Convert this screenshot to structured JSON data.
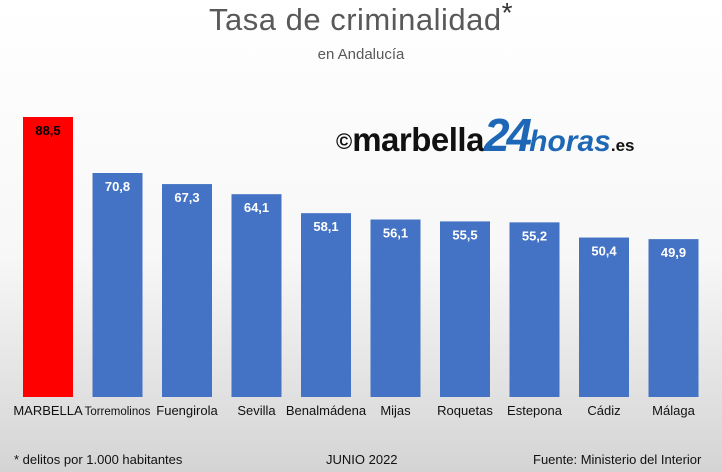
{
  "title": "Tasa de criminalidad",
  "title_mark": "*",
  "subtitle": "en Andalucía",
  "logo": {
    "copyright": "©",
    "brand": "marbella",
    "number": "24",
    "suffix": "horas",
    "tld": ".es"
  },
  "footer": {
    "note": "* delitos por 1.000 habitantes",
    "date": "JUNIO 2022",
    "source": "Fuente: Ministerio del Interior"
  },
  "colors": {
    "highlight": "#ff0000",
    "bar": "#4472c4",
    "label_light": "#ffffff",
    "label_dark": "#000000"
  },
  "chart_data": {
    "type": "bar",
    "title": "Tasa de criminalidad",
    "subtitle": "en Andalucía",
    "categories": [
      "MARBELLA",
      "Torremolinos",
      "Fuengirola",
      "Sevilla",
      "Benalmádena",
      "Mijas",
      "Roquetas",
      "Estepona",
      "Cádiz",
      "Málaga"
    ],
    "values": [
      88.5,
      70.8,
      67.3,
      64.1,
      58.1,
      56.1,
      55.5,
      55.2,
      50.4,
      49.9
    ],
    "value_labels": [
      "88,5",
      "70,8",
      "67,3",
      "64,1",
      "58,1",
      "56,1",
      "55,5",
      "55,2",
      "50,4",
      "49,9"
    ],
    "highlight_index": 0,
    "ylim": [
      0,
      88.5
    ],
    "grid": false,
    "legend": "none"
  }
}
